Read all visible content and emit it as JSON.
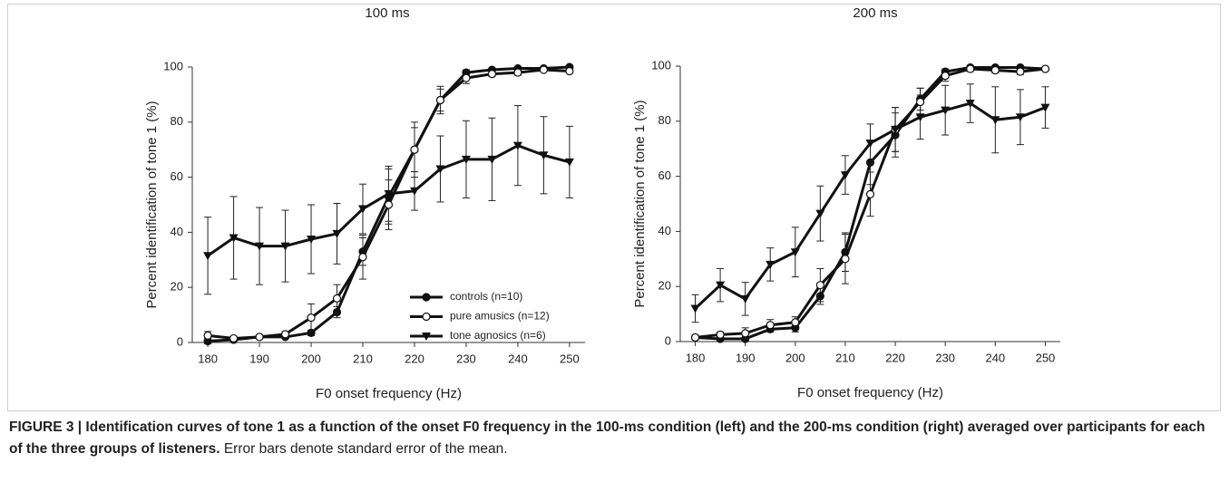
{
  "chart_data": [
    {
      "type": "line",
      "title": "100 ms",
      "xlabel": "F0 onset frequency (Hz)",
      "ylabel": "Percent identification of tone 1 (%)",
      "x": [
        180,
        185,
        190,
        195,
        200,
        205,
        210,
        215,
        220,
        225,
        230,
        235,
        240,
        245,
        250
      ],
      "xlim": [
        177,
        253
      ],
      "xticks": [
        180,
        190,
        200,
        210,
        220,
        230,
        240,
        250
      ],
      "ylim": [
        0,
        100
      ],
      "yticks": [
        0,
        20,
        40,
        60,
        80,
        100
      ],
      "legend": "lower right",
      "series": [
        {
          "name": "controls (n=10)",
          "color": "#111111",
          "marker": "filled-circle",
          "values": [
            0.5,
            1,
            2,
            2,
            3.5,
            11,
            33,
            53,
            70,
            88,
            98,
            99,
            99.5,
            99.5,
            100
          ],
          "errors": [
            1,
            0.5,
            0.5,
            0.5,
            1,
            2,
            5,
            10,
            8,
            4,
            1,
            0.5,
            0.5,
            0.5,
            0.3
          ]
        },
        {
          "name": "pure amusics (n=12)",
          "color": "#111111",
          "marker": "open-circle",
          "values": [
            2.5,
            1.5,
            2,
            3,
            9,
            16,
            31,
            50,
            70,
            88,
            96,
            97.5,
            98,
            99,
            98.5
          ],
          "errors": [
            1.5,
            0.5,
            0.5,
            1,
            5,
            5,
            8,
            9,
            10,
            5,
            2,
            1,
            1,
            0.5,
            0.5
          ]
        },
        {
          "name": "tone agnosics (n=6)",
          "color": "#111111",
          "marker": "triangle-down",
          "values": [
            31.5,
            38,
            35,
            35,
            37.5,
            39.5,
            48.5,
            54,
            55,
            63,
            66.5,
            66.5,
            71.5,
            68,
            65.5
          ],
          "errors": [
            14,
            15,
            14,
            13,
            12.5,
            11,
            9,
            10,
            7,
            12,
            14,
            15,
            14.5,
            14,
            13
          ]
        }
      ]
    },
    {
      "type": "line",
      "title": "200 ms",
      "xlabel": "F0 onset frequency (Hz)",
      "ylabel": "Percent identification of tone 1 (%)",
      "x": [
        180,
        185,
        190,
        195,
        200,
        205,
        210,
        215,
        220,
        225,
        230,
        235,
        240,
        245,
        250
      ],
      "xlim": [
        177,
        253
      ],
      "xticks": [
        180,
        190,
        200,
        210,
        220,
        230,
        240,
        250
      ],
      "ylim": [
        0,
        100
      ],
      "yticks": [
        0,
        20,
        40,
        60,
        80,
        100
      ],
      "series": [
        {
          "color": "#111111",
          "marker": "filled-circle",
          "values": [
            1.5,
            1,
            1,
            4.5,
            5,
            16.5,
            32.5,
            65,
            75,
            88,
            98,
            99.5,
            99.5,
            99.5,
            99
          ],
          "errors": [
            0.5,
            0.5,
            0.5,
            1,
            1.5,
            3,
            7,
            8,
            8,
            4,
            1,
            0.5,
            0.5,
            0.5,
            0.5
          ]
        },
        {
          "color": "#111111",
          "marker": "open-circle",
          "values": [
            1.5,
            2.5,
            3,
            6,
            7,
            20.5,
            30,
            53.5,
            77,
            87,
            96.5,
            99,
            98.5,
            98,
            99
          ],
          "errors": [
            0.5,
            1,
            2,
            2,
            2,
            6,
            9,
            8,
            8,
            5,
            2,
            1,
            1,
            1,
            0.5
          ]
        },
        {
          "color": "#111111",
          "marker": "triangle-down",
          "values": [
            12,
            20.5,
            15.5,
            28,
            32.5,
            46.5,
            60.5,
            72,
            77,
            81.5,
            84,
            86.5,
            80.5,
            81.5,
            85
          ],
          "errors": [
            5,
            6,
            6,
            6,
            9,
            10,
            7,
            7,
            8,
            8,
            9,
            7,
            12,
            10,
            7.5
          ]
        }
      ]
    }
  ],
  "caption": {
    "bold": "FIGURE 3 | Identification curves of tone 1 as a function of the onset F0 frequency in the 100-ms condition (left) and the 200-ms condition (right) averaged over participants for each of the three groups of listeners.",
    "text": "Error bars denote standard error of the mean."
  }
}
